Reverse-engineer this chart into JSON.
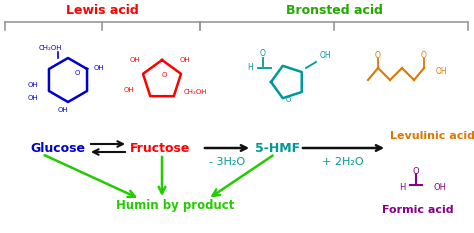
{
  "bg_color": "#ffffff",
  "lewis_acid_label": "Lewis acid",
  "lewis_acid_color": "#ff0000",
  "bronsted_acid_label": "Bronsted acid",
  "bronsted_acid_color": "#22aa00",
  "glucose_label": "Glucose",
  "glucose_color": "#0000cc",
  "fructose_label": "Fructose",
  "fructose_color": "#ff0000",
  "hmf_label": "5-HMF",
  "hmf_color": "#009999",
  "levulinic_label": "Levulinic acid",
  "levulinic_color": "#dd7700",
  "formic_label": "Formic acid",
  "formic_color": "#880088",
  "humin_label": "Humin by product",
  "humin_color": "#22cc00",
  "water1_label": "- 3H₂O",
  "water1_color": "#009999",
  "water2_label": "+ 2H₂O",
  "water2_color": "#009999",
  "arrow_color": "#111111",
  "green_arrow_color": "#22cc00",
  "brace_color": "#999999",
  "figw": 4.74,
  "figh": 2.33,
  "dpi": 100
}
